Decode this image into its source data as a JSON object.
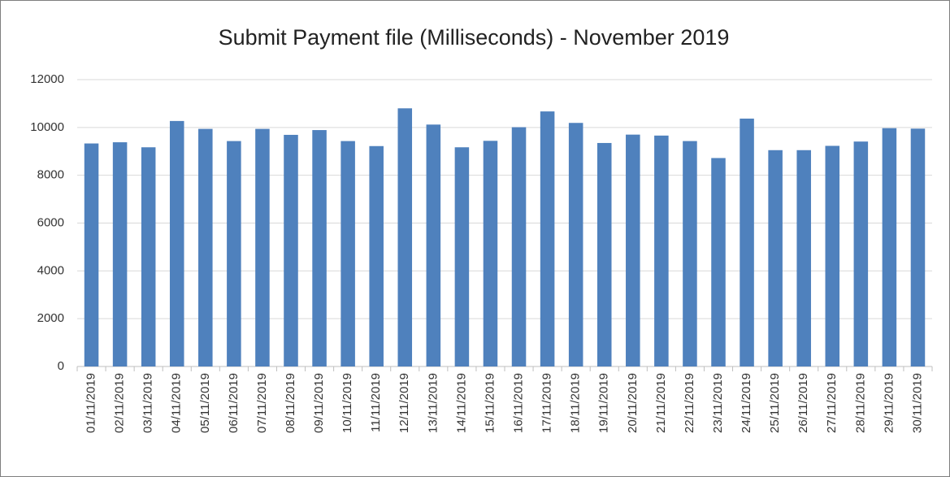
{
  "chart_data": {
    "type": "bar",
    "title": "Submit Payment file (Milliseconds) - November 2019",
    "categories": [
      "01/11/2019",
      "02/11/2019",
      "03/11/2019",
      "04/11/2019",
      "05/11/2019",
      "06/11/2019",
      "07/11/2019",
      "08/11/2019",
      "09/11/2019",
      "10/11/2019",
      "11/11/2019",
      "12/11/2019",
      "13/11/2019",
      "14/11/2019",
      "15/11/2019",
      "16/11/2019",
      "17/11/2019",
      "18/11/2019",
      "19/11/2019",
      "20/11/2019",
      "21/11/2019",
      "22/11/2019",
      "23/11/2019",
      "24/11/2019",
      "25/11/2019",
      "26/11/2019",
      "27/11/2019",
      "28/11/2019",
      "29/11/2019",
      "30/11/2019"
    ],
    "values": [
      9330,
      9380,
      9170,
      10270,
      9940,
      9430,
      9940,
      9690,
      9890,
      9430,
      9220,
      10800,
      10120,
      9170,
      9440,
      10010,
      10670,
      10190,
      9350,
      9700,
      9660,
      9430,
      8720,
      10370,
      9050,
      9050,
      9230,
      9410,
      9970,
      9950
    ],
    "color": "#4f81bd",
    "ylim": [
      0,
      12000
    ],
    "yticks": [
      0,
      2000,
      4000,
      6000,
      8000,
      10000,
      12000
    ],
    "grid": true
  }
}
